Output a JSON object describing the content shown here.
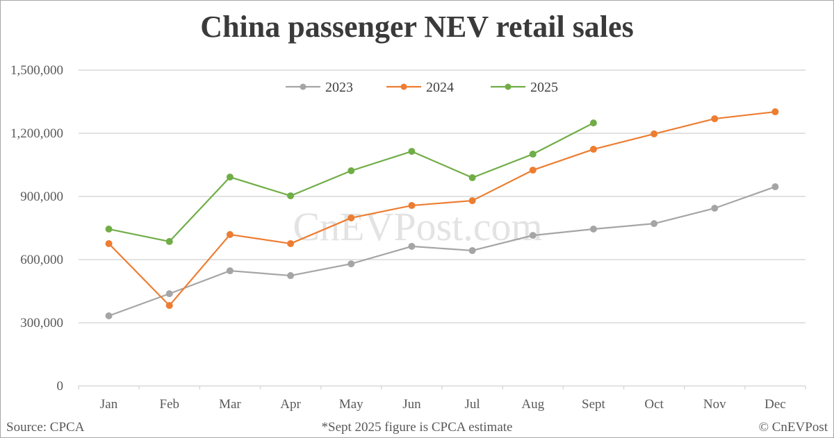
{
  "chart_data": {
    "type": "line",
    "title": "China passenger NEV retail sales",
    "xlabel": "",
    "ylabel": "",
    "categories": [
      "Jan",
      "Feb",
      "Mar",
      "Apr",
      "May",
      "Jun",
      "Jul",
      "Aug",
      "Sept",
      "Oct",
      "Nov",
      "Dec"
    ],
    "series": [
      {
        "name": "2023",
        "color": "#a5a5a5",
        "values": [
          333000,
          438000,
          547000,
          524000,
          580000,
          663000,
          643000,
          715000,
          745000,
          771000,
          844000,
          946000
        ]
      },
      {
        "name": "2024",
        "color": "#ed7d31",
        "values": [
          676000,
          382000,
          719000,
          676000,
          798000,
          857000,
          880000,
          1025000,
          1124000,
          1197000,
          1269000,
          1302000
        ]
      },
      {
        "name": "2025",
        "color": "#70ad47",
        "values": [
          745000,
          686000,
          992000,
          903000,
          1022000,
          1114000,
          989000,
          1101000,
          1249000,
          null,
          null,
          null
        ]
      }
    ],
    "ylim": [
      0,
      1500000
    ],
    "yticks": [
      0,
      300000,
      600000,
      900000,
      1200000,
      1500000
    ],
    "ytick_labels": [
      "0",
      "300,000",
      "600,000",
      "900,000",
      "1,200,000",
      "1,500,000"
    ],
    "grid": true,
    "legend_position": "top"
  },
  "watermark": "CnEVPost.com",
  "footer": {
    "source": "Source: CPCA",
    "note": "*Sept 2025 figure is CPCA estimate",
    "copyright": "© CnEVPost"
  },
  "colors": {
    "gridline": "#d9d9d9",
    "axis_text": "#595959",
    "title": "#3a3a3a",
    "watermark": "#e3e3e3"
  }
}
